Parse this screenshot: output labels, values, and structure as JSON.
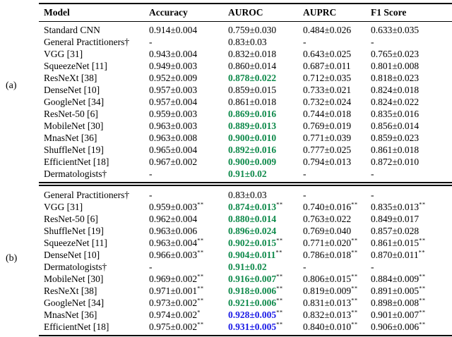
{
  "colors": {
    "highlight_green": "#0f8a4b",
    "highlight_blue": "#1a1ae6",
    "text": "#000000",
    "background": "#ffffff"
  },
  "side_labels": {
    "a": "(a)",
    "b": "(b)"
  },
  "table": {
    "headers": [
      "Model",
      "Accuracy",
      "AUROC",
      "AUPRC",
      "F1 Score"
    ],
    "section_a": {
      "rows": [
        {
          "model": "Standard CNN",
          "values": [
            {
              "text": "0.914±0.004"
            },
            {
              "text": "0.759±0.030"
            },
            {
              "text": "0.484±0.026"
            },
            {
              "text": "0.633±0.035"
            }
          ]
        },
        {
          "model": "General Practitioners†",
          "values": [
            {
              "text": "-"
            },
            {
              "text": "0.83±0.03"
            },
            {
              "text": "-"
            },
            {
              "text": "-"
            }
          ]
        },
        {
          "model": "VGG [31]",
          "values": [
            {
              "text": "0.943±0.004"
            },
            {
              "text": "0.832±0.018"
            },
            {
              "text": "0.643±0.025"
            },
            {
              "text": "0.765±0.023"
            }
          ]
        },
        {
          "model": "SqueezeNet [11]",
          "values": [
            {
              "text": "0.949±0.003"
            },
            {
              "text": "0.860±0.014"
            },
            {
              "text": "0.687±0.011"
            },
            {
              "text": "0.801±0.008"
            }
          ]
        },
        {
          "model": "ResNeXt [38]",
          "values": [
            {
              "text": "0.952±0.009"
            },
            {
              "text": "0.878±0.022",
              "color": "green"
            },
            {
              "text": "0.712±0.035"
            },
            {
              "text": "0.818±0.023"
            }
          ]
        },
        {
          "model": "DenseNet [10]",
          "values": [
            {
              "text": "0.957±0.003"
            },
            {
              "text": "0.859±0.015"
            },
            {
              "text": "0.733±0.021"
            },
            {
              "text": "0.824±0.018"
            }
          ]
        },
        {
          "model": "GoogleNet [34]",
          "values": [
            {
              "text": "0.957±0.004"
            },
            {
              "text": "0.861±0.018"
            },
            {
              "text": "0.732±0.024"
            },
            {
              "text": "0.824±0.022"
            }
          ]
        },
        {
          "model": "ResNet-50 [6]",
          "values": [
            {
              "text": "0.959±0.003"
            },
            {
              "text": "0.869±0.016",
              "color": "green"
            },
            {
              "text": "0.744±0.018"
            },
            {
              "text": "0.835±0.016"
            }
          ]
        },
        {
          "model": "MobileNet [30]",
          "values": [
            {
              "text": "0.963±0.003"
            },
            {
              "text": "0.889±0.013",
              "color": "green"
            },
            {
              "text": "0.769±0.019"
            },
            {
              "text": "0.856±0.014"
            }
          ]
        },
        {
          "model": "MnasNet [36]",
          "values": [
            {
              "text": "0.963±0.008"
            },
            {
              "text": "0.900±0.010",
              "color": "green"
            },
            {
              "text": "0.771±0.039"
            },
            {
              "text": "0.859±0.023"
            }
          ]
        },
        {
          "model": "ShuffleNet [19]",
          "values": [
            {
              "text": "0.965±0.004"
            },
            {
              "text": "0.892±0.016",
              "color": "green"
            },
            {
              "text": "0.777±0.025"
            },
            {
              "text": "0.861±0.018"
            }
          ]
        },
        {
          "model": "EfficientNet [18]",
          "values": [
            {
              "text": "0.967±0.002"
            },
            {
              "text": "0.900±0.009",
              "color": "green"
            },
            {
              "text": "0.794±0.013"
            },
            {
              "text": "0.872±0.010"
            }
          ]
        },
        {
          "model": "Dermatologists†",
          "values": [
            {
              "text": "-"
            },
            {
              "text": "0.91±0.02",
              "color": "green"
            },
            {
              "text": "-"
            },
            {
              "text": "-"
            }
          ]
        }
      ]
    },
    "section_b": {
      "rows": [
        {
          "model": "General Practitioners†",
          "values": [
            {
              "text": "-"
            },
            {
              "text": "0.83±0.03"
            },
            {
              "text": "-"
            },
            {
              "text": "-"
            }
          ]
        },
        {
          "model": "VGG [31]",
          "values": [
            {
              "text": "0.959±0.003",
              "sup": "**"
            },
            {
              "text": "0.874±0.013",
              "color": "green",
              "sup": "**"
            },
            {
              "text": "0.740±0.016",
              "sup": "**"
            },
            {
              "text": "0.835±0.013",
              "sup": "**"
            }
          ]
        },
        {
          "model": "ResNet-50 [6]",
          "values": [
            {
              "text": "0.962±0.004"
            },
            {
              "text": "0.880±0.014",
              "color": "green"
            },
            {
              "text": "0.763±0.022"
            },
            {
              "text": "0.849±0.017"
            }
          ]
        },
        {
          "model": "ShuffleNet [19]",
          "values": [
            {
              "text": "0.963±0.006"
            },
            {
              "text": "0.896±0.024",
              "color": "green"
            },
            {
              "text": "0.769±0.040"
            },
            {
              "text": "0.857±0.028"
            }
          ]
        },
        {
          "model": "SqueezeNet [11]",
          "values": [
            {
              "text": "0.963±0.004",
              "sup": "**"
            },
            {
              "text": "0.902±0.015",
              "color": "green",
              "sup": "**"
            },
            {
              "text": "0.771±0.020",
              "sup": "**"
            },
            {
              "text": "0.861±0.015",
              "sup": "**"
            }
          ]
        },
        {
          "model": "DenseNet [10]",
          "values": [
            {
              "text": "0.966±0.003",
              "sup": "**"
            },
            {
              "text": "0.904±0.011",
              "color": "green",
              "sup": "**"
            },
            {
              "text": "0.786±0.018",
              "sup": "**"
            },
            {
              "text": "0.870±0.011",
              "sup": "**"
            }
          ]
        },
        {
          "model": "Dermatologists†",
          "values": [
            {
              "text": "-"
            },
            {
              "text": "0.91±0.02",
              "color": "green"
            },
            {
              "text": "-"
            },
            {
              "text": "-"
            }
          ]
        },
        {
          "model": "MobileNet [30]",
          "values": [
            {
              "text": "0.969±0.002",
              "sup": "**"
            },
            {
              "text": "0.916±0.007",
              "color": "green",
              "sup": "**"
            },
            {
              "text": "0.806±0.015",
              "sup": "**"
            },
            {
              "text": "0.884±0.009",
              "sup": "**"
            }
          ]
        },
        {
          "model": "ResNeXt [38]",
          "values": [
            {
              "text": "0.971±0.001",
              "sup": "**"
            },
            {
              "text": "0.918±0.006",
              "color": "green",
              "sup": "**"
            },
            {
              "text": "0.819±0.009",
              "sup": "**"
            },
            {
              "text": "0.891±0.005",
              "sup": "**"
            }
          ]
        },
        {
          "model": "GoogleNet [34]",
          "values": [
            {
              "text": "0.973±0.002",
              "sup": "**"
            },
            {
              "text": "0.921±0.006",
              "color": "green",
              "sup": "**"
            },
            {
              "text": "0.831±0.013",
              "sup": "**"
            },
            {
              "text": "0.898±0.008",
              "sup": "**"
            }
          ]
        },
        {
          "model": "MnasNet [36]",
          "values": [
            {
              "text": "0.974±0.002",
              "sup": "*"
            },
            {
              "text": "0.928±0.005",
              "color": "blue",
              "sup": "**"
            },
            {
              "text": "0.832±0.013",
              "sup": "**"
            },
            {
              "text": "0.901±0.007",
              "sup": "**"
            }
          ]
        },
        {
          "model": "EfficientNet [18]",
          "values": [
            {
              "text": "0.975±0.002",
              "sup": "**"
            },
            {
              "text": "0.931±0.005",
              "color": "blue",
              "sup": "**"
            },
            {
              "text": "0.840±0.010",
              "sup": "**"
            },
            {
              "text": "0.906±0.006",
              "sup": "**"
            }
          ]
        }
      ]
    }
  }
}
